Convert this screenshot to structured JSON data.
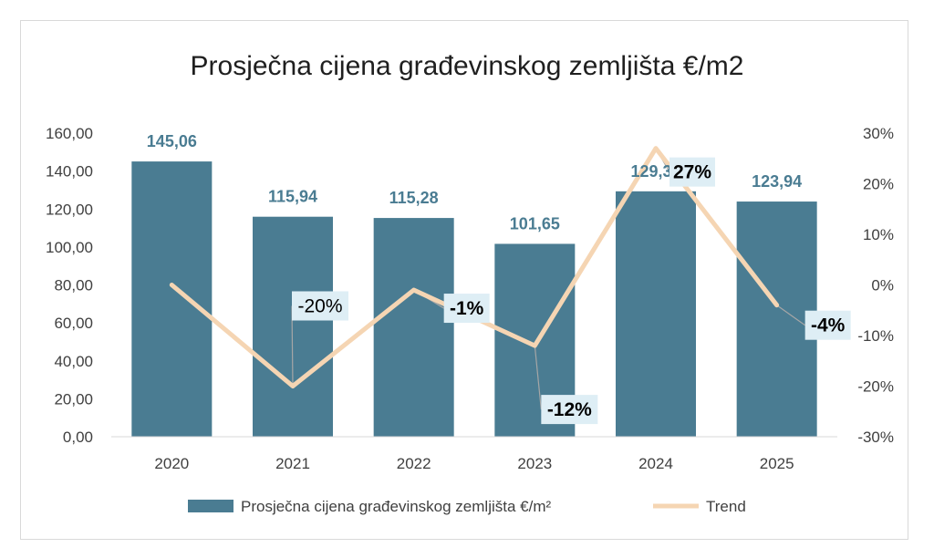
{
  "chart_data": {
    "type": "bar",
    "title": "Prosječna cijena građevinskog zemljišta €/m2",
    "categories": [
      "2020",
      "2021",
      "2022",
      "2023",
      "2024",
      "2025"
    ],
    "series": [
      {
        "name": "Prosječna cijena građevinskog zemljišta €/m²",
        "type": "bar",
        "axis": "left",
        "values": [
          145.06,
          115.94,
          115.28,
          101.65,
          129.33,
          123.94
        ],
        "data_labels": [
          "145,06",
          "115,94",
          "115,28",
          "101,65",
          "129,33",
          "123,94"
        ]
      },
      {
        "name": "Trend",
        "type": "line",
        "axis": "right",
        "values": [
          0,
          -20,
          -1,
          -12,
          27,
          -4
        ],
        "data_labels": [
          "",
          "-20%",
          "-1%",
          "-12%",
          "27%",
          "-4%"
        ]
      }
    ],
    "ylim": [
      0,
      160
    ],
    "y_ticks": [
      "0,00",
      "20,00",
      "40,00",
      "60,00",
      "80,00",
      "100,00",
      "120,00",
      "140,00",
      "160,00"
    ],
    "y2lim": [
      -30,
      30
    ],
    "y2_ticks": [
      "-30%",
      "-20%",
      "-10%",
      "0%",
      "10%",
      "20%",
      "30%"
    ],
    "grid": false,
    "legend_position": "bottom",
    "colors": {
      "bar": "#4a7c92",
      "bar_label": "#4a7c92",
      "line": "#f5d5b3",
      "pct_label_bg": "#deeef5"
    }
  }
}
